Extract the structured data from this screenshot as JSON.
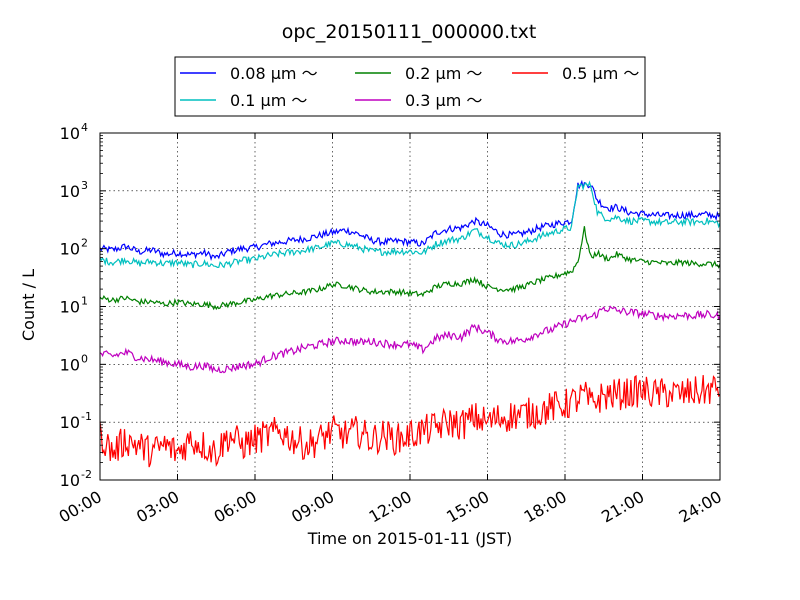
{
  "chart_data": {
    "type": "line",
    "title": "opc_20150111_000000.txt",
    "xlabel": "Time on 2015-01-11 (JST)",
    "ylabel": "Count / L",
    "y_scale": "log",
    "ylim": [
      0.01,
      10000
    ],
    "xlim": [
      0,
      24
    ],
    "x_tick_labels": [
      "00:00",
      "03:00",
      "06:00",
      "09:00",
      "12:00",
      "15:00",
      "18:00",
      "21:00",
      "24:00"
    ],
    "y_tick_labels": [
      {
        "base": "10",
        "exp": "-2"
      },
      {
        "base": "10",
        "exp": "-1"
      },
      {
        "base": "10",
        "exp": "0"
      },
      {
        "base": "10",
        "exp": "1"
      },
      {
        "base": "10",
        "exp": "2"
      },
      {
        "base": "10",
        "exp": "3"
      },
      {
        "base": "10",
        "exp": "4"
      }
    ],
    "grid": true,
    "legend_position": "top-center",
    "series": [
      {
        "name": "0.08 μm ～",
        "color": "#0000ff",
        "x": [
          0,
          0.5,
          1,
          1.5,
          2,
          2.5,
          3,
          3.5,
          4,
          4.5,
          5,
          5.5,
          6,
          6.5,
          7,
          7.5,
          8,
          8.5,
          9,
          9.5,
          10,
          10.5,
          11,
          11.5,
          12,
          12.5,
          13,
          13.5,
          14,
          14.5,
          15,
          15.5,
          16,
          16.5,
          17,
          17.5,
          18,
          18.25,
          18.5,
          18.75,
          19,
          19.25,
          19.5,
          19.75,
          20,
          20.5,
          21,
          21.5,
          22,
          22.5,
          23,
          23.5,
          24
        ],
        "y": [
          100,
          95,
          110,
          88,
          95,
          80,
          85,
          78,
          85,
          70,
          90,
          100,
          105,
          120,
          130,
          140,
          150,
          170,
          190,
          210,
          180,
          140,
          130,
          135,
          130,
          120,
          190,
          220,
          230,
          300,
          250,
          180,
          170,
          190,
          230,
          260,
          290,
          300,
          1250,
          1300,
          1300,
          700,
          550,
          500,
          520,
          420,
          400,
          380,
          370,
          380,
          380,
          390,
          360
        ]
      },
      {
        "name": "0.1 μm ～",
        "color": "#00bfbf",
        "x": [
          0,
          0.5,
          1,
          1.5,
          2,
          2.5,
          3,
          3.5,
          4,
          4.5,
          5,
          5.5,
          6,
          6.5,
          7,
          7.5,
          8,
          8.5,
          9,
          9.5,
          10,
          10.5,
          11,
          11.5,
          12,
          12.5,
          13,
          13.5,
          14,
          14.5,
          15,
          15.5,
          16,
          16.5,
          17,
          17.5,
          18,
          18.25,
          18.5,
          18.75,
          19,
          19.25,
          19.5,
          19.75,
          20,
          20.5,
          21,
          21.5,
          22,
          22.5,
          23,
          23.5,
          24
        ],
        "y": [
          65,
          58,
          65,
          55,
          60,
          55,
          58,
          52,
          56,
          50,
          55,
          62,
          66,
          75,
          82,
          88,
          95,
          105,
          125,
          120,
          105,
          90,
          88,
          90,
          90,
          85,
          120,
          140,
          150,
          210,
          160,
          120,
          115,
          130,
          160,
          190,
          220,
          230,
          1200,
          1250,
          1250,
          430,
          350,
          330,
          350,
          300,
          300,
          290,
          280,
          290,
          290,
          300,
          270
        ]
      },
      {
        "name": "0.2 μm ～",
        "color": "#008000",
        "x": [
          0,
          0.5,
          1,
          1.5,
          2,
          2.5,
          3,
          3.5,
          4,
          4.5,
          5,
          5.5,
          6,
          6.5,
          7,
          7.5,
          8,
          8.5,
          9,
          9.5,
          10,
          10.5,
          11,
          11.5,
          12,
          12.5,
          13,
          13.5,
          14,
          14.5,
          15,
          15.5,
          16,
          16.5,
          17,
          17.5,
          18,
          18.25,
          18.5,
          18.75,
          19,
          19.25,
          19.5,
          19.75,
          20,
          20.5,
          21,
          21.5,
          22,
          22.5,
          23,
          23.5,
          24
        ],
        "y": [
          14,
          13,
          14,
          12,
          12,
          11,
          12,
          11,
          11,
          10,
          11,
          12,
          13,
          15,
          16,
          17,
          18,
          20,
          24,
          23,
          20,
          18,
          18,
          18,
          17,
          16,
          22,
          25,
          25,
          30,
          22,
          20,
          20,
          23,
          28,
          32,
          38,
          40,
          60,
          220,
          70,
          85,
          70,
          68,
          80,
          65,
          60,
          58,
          55,
          58,
          55,
          55,
          52
        ]
      },
      {
        "name": "0.3 μm ～",
        "color": "#bf00bf",
        "x": [
          0,
          0.5,
          1,
          1.5,
          2,
          2.5,
          3,
          3.5,
          4,
          4.5,
          5,
          5.5,
          6,
          6.5,
          7,
          7.5,
          8,
          8.5,
          9,
          9.5,
          10,
          10.5,
          11,
          11.5,
          12,
          12.5,
          13,
          13.5,
          14,
          14.5,
          15,
          15.5,
          16,
          16.5,
          17,
          17.5,
          18,
          18.25,
          18.5,
          18.75,
          19,
          19.25,
          19.5,
          19.75,
          20,
          20.5,
          21,
          21.5,
          22,
          22.5,
          23,
          23.5,
          24
        ],
        "y": [
          1.5,
          1.4,
          1.6,
          1.3,
          1.2,
          1.1,
          1.0,
          0.9,
          0.95,
          0.8,
          0.85,
          0.95,
          1.0,
          1.3,
          1.5,
          1.7,
          2.0,
          2.2,
          2.5,
          2.6,
          2.4,
          2.5,
          2.3,
          2.2,
          2.2,
          1.8,
          2.8,
          3.2,
          3.0,
          4.5,
          3.5,
          2.6,
          2.5,
          2.8,
          3.5,
          4.0,
          5.0,
          5.5,
          6.0,
          6.5,
          6.5,
          7.5,
          9.5,
          9.0,
          8.5,
          8.0,
          7.5,
          7.0,
          6.8,
          7.0,
          7.0,
          7.2,
          6.8
        ]
      },
      {
        "name": "0.5 μm ～",
        "color": "#ff0000",
        "x": [
          0,
          0.5,
          1,
          1.5,
          2,
          2.5,
          3,
          3.5,
          4,
          4.5,
          5,
          5.5,
          6,
          6.5,
          7,
          7.5,
          8,
          8.5,
          9,
          9.5,
          10,
          10.5,
          11,
          11.5,
          12,
          12.5,
          13,
          13.5,
          14,
          14.5,
          15,
          15.5,
          16,
          16.5,
          17,
          17.5,
          18,
          18.25,
          18.5,
          18.75,
          19,
          19.25,
          19.5,
          19.75,
          20,
          20.5,
          21,
          21.5,
          22,
          22.5,
          23,
          23.5,
          24
        ],
        "y": [
          0.06,
          0.03,
          0.05,
          0.04,
          0.03,
          0.04,
          0.03,
          0.05,
          0.04,
          0.03,
          0.06,
          0.04,
          0.05,
          0.06,
          0.07,
          0.05,
          0.04,
          0.05,
          0.07,
          0.06,
          0.07,
          0.05,
          0.06,
          0.05,
          0.06,
          0.07,
          0.08,
          0.1,
          0.09,
          0.12,
          0.1,
          0.12,
          0.13,
          0.14,
          0.15,
          0.18,
          0.2,
          0.22,
          0.25,
          0.3,
          0.2,
          0.25,
          0.28,
          0.3,
          0.3,
          0.32,
          0.35,
          0.3,
          0.32,
          0.3,
          0.33,
          0.35,
          0.4
        ]
      }
    ]
  }
}
